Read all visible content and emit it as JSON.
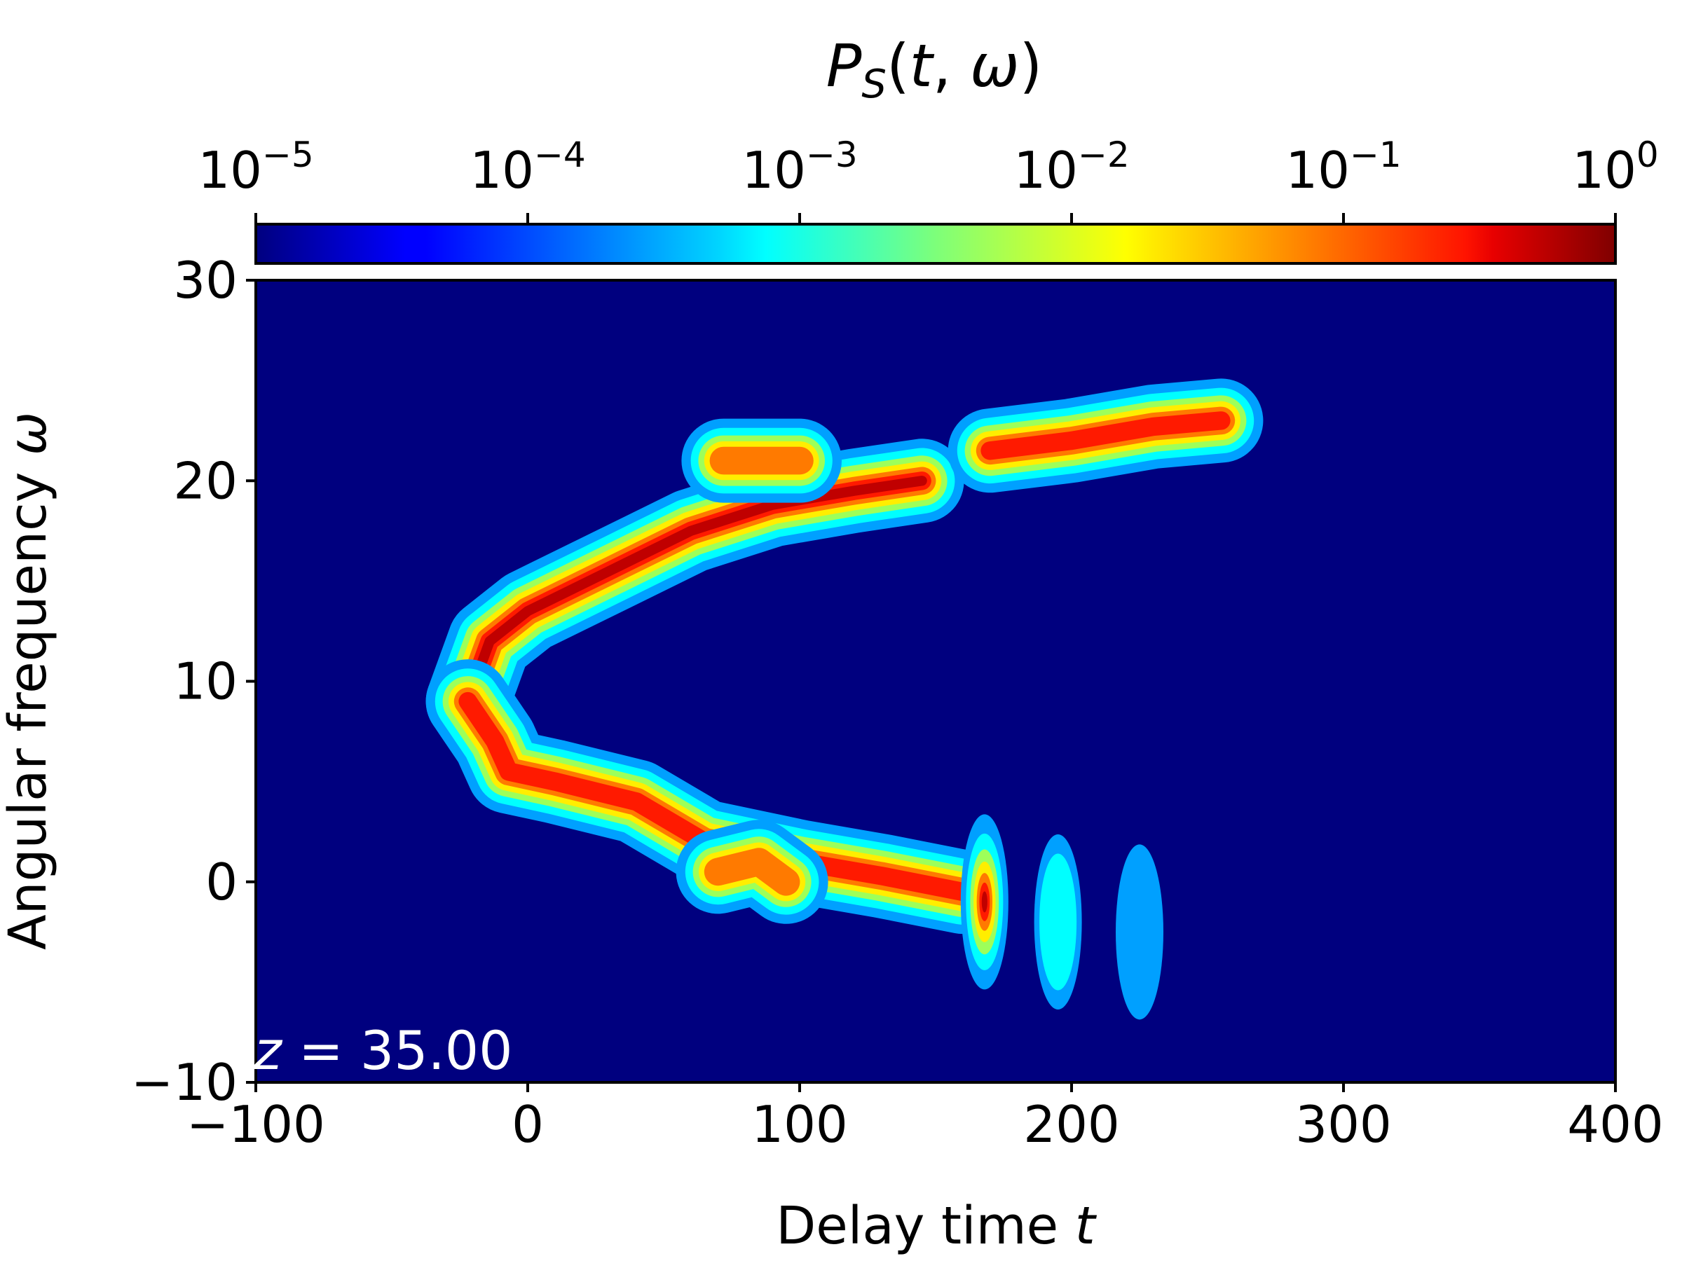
{
  "chart_data": {
    "type": "heatmap",
    "title": "P_S(t, ω)",
    "xlabel": "Delay time t",
    "ylabel": "Angular frequency ω",
    "xlim": [
      -100,
      400
    ],
    "ylim": [
      -10,
      30
    ],
    "x_ticks": [
      -100,
      0,
      100,
      200,
      300,
      400
    ],
    "y_ticks": [
      -10,
      0,
      10,
      20,
      30
    ],
    "x_tick_labels": [
      "−100",
      "0",
      "100",
      "200",
      "300",
      "400"
    ],
    "y_tick_labels": [
      "−10",
      "0",
      "10",
      "20",
      "30"
    ],
    "colorbar": {
      "position": "top",
      "scale": "log",
      "colormap": "jet",
      "range": [
        1e-05,
        1
      ],
      "ticks": [
        {
          "base": "10",
          "exp": "−5"
        },
        {
          "base": "10",
          "exp": "−4"
        },
        {
          "base": "10",
          "exp": "−3"
        },
        {
          "base": "10",
          "exp": "−2"
        },
        {
          "base": "10",
          "exp": "−1"
        },
        {
          "base": "10",
          "exp": "0"
        }
      ]
    },
    "annotation": "z = 35.00",
    "background_color": "#00007f",
    "features": [
      {
        "name": "upper branch",
        "path": [
          [
            -22,
            9
          ],
          [
            -14,
            12
          ],
          [
            0,
            13.5
          ],
          [
            30,
            15.5
          ],
          [
            60,
            17.5
          ],
          [
            90,
            18.8
          ],
          [
            120,
            19.5
          ],
          [
            145,
            20
          ]
        ],
        "peak": 1.0
      },
      {
        "name": "upper branch patch",
        "path": [
          [
            72,
            21
          ],
          [
            85,
            21
          ],
          [
            100,
            21
          ]
        ],
        "peak": 0.3
      },
      {
        "name": "lower branch",
        "path": [
          [
            -22,
            9
          ],
          [
            -12,
            7
          ],
          [
            -7,
            5.5
          ],
          [
            10,
            5
          ],
          [
            40,
            4
          ],
          [
            65,
            2
          ],
          [
            100,
            1
          ],
          [
            130,
            0.3
          ],
          [
            160,
            -0.5
          ]
        ],
        "peak": 0.6
      },
      {
        "name": "lower branch patch",
        "path": [
          [
            70,
            0.5
          ],
          [
            85,
            1
          ],
          [
            95,
            0
          ]
        ],
        "peak": 0.2
      },
      {
        "name": "soliton 1",
        "center": [
          168,
          -1
        ],
        "peak": 1.0
      },
      {
        "name": "soliton 2",
        "center": [
          195,
          -2
        ],
        "peak": 0.003
      },
      {
        "name": "soliton 3",
        "center": [
          225,
          -2.5
        ],
        "peak": 0.001
      },
      {
        "name": "dispersive wave",
        "path": [
          [
            170,
            21.5
          ],
          [
            200,
            22
          ],
          [
            230,
            22.7
          ],
          [
            255,
            23
          ]
        ],
        "peak": 0.5
      }
    ]
  }
}
